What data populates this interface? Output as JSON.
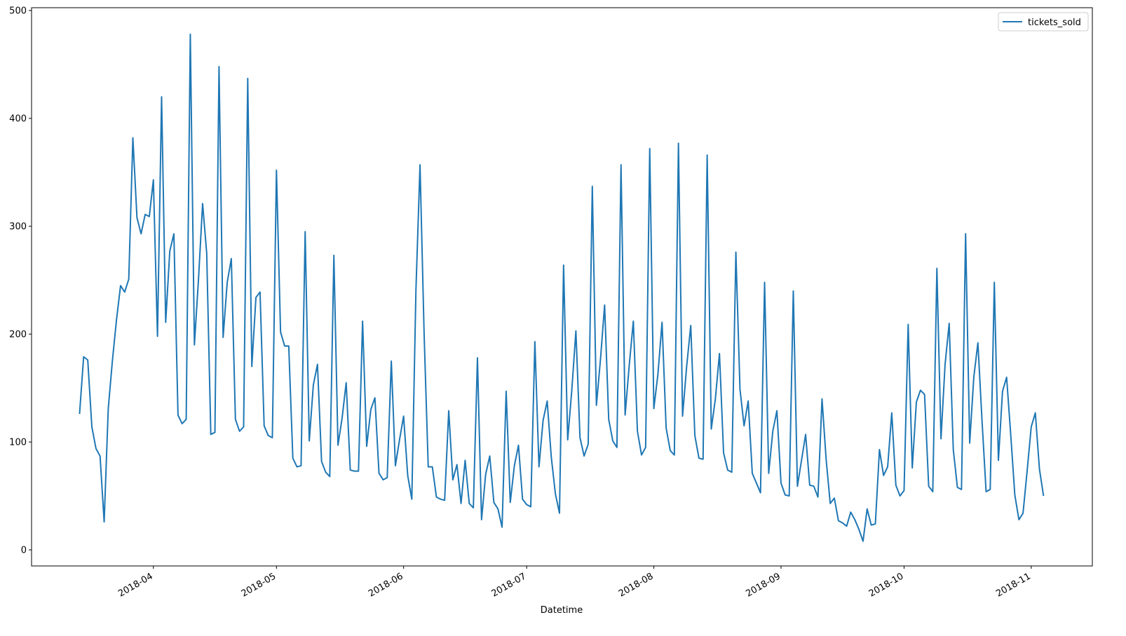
{
  "chart_data": {
    "type": "line",
    "x_label": "Datetime",
    "x": [
      17604,
      17605,
      17606,
      17607,
      17608,
      17609,
      17610,
      17611,
      17612,
      17613,
      17614,
      17615,
      17616,
      17617,
      17618,
      17619,
      17620,
      17621,
      17622,
      17623,
      17624,
      17625,
      17626,
      17627,
      17628,
      17629,
      17630,
      17631,
      17632,
      17633,
      17634,
      17635,
      17636,
      17637,
      17638,
      17639,
      17640,
      17641,
      17642,
      17643,
      17644,
      17645,
      17646,
      17647,
      17648,
      17649,
      17650,
      17651,
      17652,
      17653,
      17654,
      17655,
      17656,
      17657,
      17658,
      17659,
      17660,
      17661,
      17662,
      17663,
      17664,
      17665,
      17666,
      17667,
      17668,
      17669,
      17670,
      17671,
      17672,
      17673,
      17674,
      17675,
      17676,
      17677,
      17678,
      17679,
      17680,
      17681,
      17682,
      17683,
      17684,
      17685,
      17686,
      17687,
      17688,
      17689,
      17690,
      17691,
      17692,
      17693,
      17694,
      17695,
      17696,
      17697,
      17698,
      17699,
      17700,
      17701,
      17702,
      17703,
      17704,
      17705,
      17706,
      17707,
      17708,
      17709,
      17710,
      17711,
      17712,
      17713,
      17714,
      17715,
      17716,
      17717,
      17718,
      17719,
      17720,
      17721,
      17722,
      17723,
      17724,
      17725,
      17726,
      17727,
      17728,
      17729,
      17730,
      17731,
      17732,
      17733,
      17734,
      17735,
      17736,
      17737,
      17738,
      17739,
      17740,
      17741,
      17742,
      17743,
      17744,
      17745,
      17746,
      17747,
      17748,
      17749,
      17750,
      17751,
      17752,
      17753,
      17754,
      17755,
      17756,
      17757,
      17758,
      17759,
      17760,
      17761,
      17762,
      17763,
      17764,
      17765,
      17766,
      17767,
      17768,
      17769,
      17770,
      17771,
      17772,
      17773,
      17774,
      17775,
      17776,
      17777,
      17778,
      17779,
      17780,
      17781,
      17782,
      17783,
      17784,
      17785,
      17786,
      17787,
      17788,
      17789,
      17790,
      17791,
      17792,
      17793,
      17794,
      17795,
      17796,
      17797,
      17798,
      17799,
      17800,
      17801,
      17802,
      17803,
      17804,
      17805,
      17806,
      17807,
      17808,
      17809,
      17810,
      17811,
      17812,
      17813,
      17814,
      17815,
      17816,
      17817,
      17818,
      17819,
      17820,
      17821,
      17822,
      17823,
      17824,
      17825,
      17826,
      17827,
      17828,
      17829,
      17830,
      17831,
      17832,
      17833,
      17834,
      17835,
      17836,
      17837,
      17838,
      17839
    ],
    "series": [
      {
        "name": "tickets_sold",
        "color": "#1f77b4",
        "values": [
          126,
          179,
          176,
          114,
          94,
          87,
          26,
          131,
          175,
          213,
          245,
          239,
          251,
          382,
          308,
          293,
          311,
          309,
          343,
          198,
          420,
          211,
          277,
          293,
          125,
          117,
          121,
          478,
          190,
          251,
          321,
          275,
          107,
          109,
          448,
          197,
          248,
          270,
          121,
          110,
          114,
          437,
          170,
          234,
          239,
          115,
          106,
          104,
          352,
          202,
          189,
          189,
          85,
          77,
          78,
          295,
          101,
          153,
          172,
          82,
          72,
          68,
          273,
          97,
          122,
          155,
          74,
          73,
          73,
          212,
          96,
          130,
          141,
          71,
          65,
          67,
          175,
          78,
          102,
          124,
          69,
          47,
          240,
          357,
          200,
          77,
          77,
          49,
          47,
          46,
          129,
          65,
          79,
          43,
          83,
          43,
          39,
          178,
          28,
          70,
          87,
          44,
          38,
          21,
          147,
          44,
          78,
          97,
          47,
          42,
          40,
          193,
          77,
          120,
          138,
          86,
          52,
          34,
          264,
          102,
          148,
          203,
          104,
          87,
          98,
          337,
          134,
          177,
          227,
          121,
          101,
          95,
          357,
          125,
          171,
          212,
          110,
          88,
          95,
          372,
          131,
          163,
          211,
          113,
          92,
          88,
          377,
          124,
          170,
          208,
          106,
          85,
          84,
          366,
          112,
          140,
          182,
          90,
          74,
          72,
          276,
          149,
          115,
          138,
          71,
          62,
          53,
          248,
          71,
          110,
          129,
          62,
          51,
          50,
          240,
          59,
          83,
          107,
          60,
          59,
          49,
          140,
          84,
          43,
          48,
          27,
          25,
          22,
          35,
          28,
          19,
          8,
          38,
          23,
          24,
          93,
          69,
          77,
          127,
          60,
          50,
          55,
          209,
          76,
          137,
          148,
          144,
          59,
          54,
          261,
          103,
          172,
          210,
          93,
          58,
          56,
          293,
          99,
          160,
          192,
          120,
          54,
          56,
          248,
          83,
          147,
          160,
          107,
          51,
          28,
          34,
          73,
          114,
          127,
          75,
          50
        ]
      }
    ],
    "xlim": [
      17592.3,
      17850.9
    ],
    "xticks": [
      {
        "value": 17622,
        "label": "2018-04"
      },
      {
        "value": 17652,
        "label": "2018-05"
      },
      {
        "value": 17683,
        "label": "2018-06"
      },
      {
        "value": 17713,
        "label": "2018-07"
      },
      {
        "value": 17744,
        "label": "2018-08"
      },
      {
        "value": 17775,
        "label": "2018-09"
      },
      {
        "value": 17805,
        "label": "2018-10"
      },
      {
        "value": 17836,
        "label": "2018-11"
      }
    ],
    "ylim": [
      -14.9,
      502.6
    ],
    "yticks": [
      0,
      100,
      200,
      300,
      400,
      500
    ],
    "grid": false,
    "legend": "upper right"
  }
}
